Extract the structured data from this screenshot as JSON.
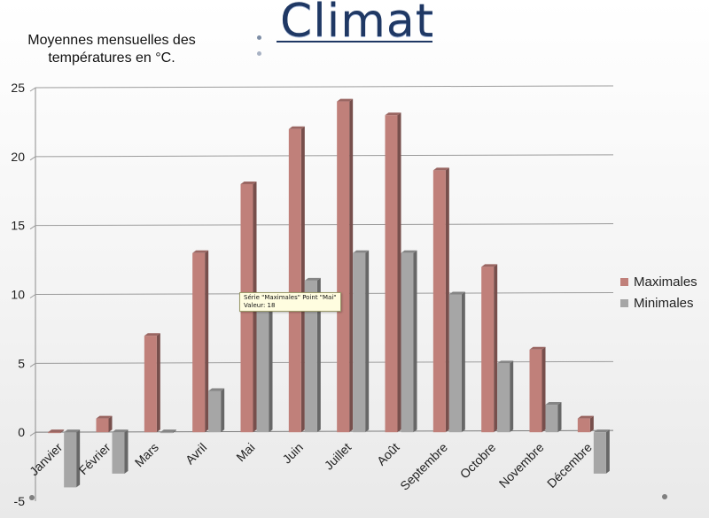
{
  "slide": {
    "title": "Climat"
  },
  "tooltip": {
    "line1": "Série \"Maximales\" Point \"Mai\"",
    "line2": "Valeur: 18"
  },
  "chart_data": {
    "type": "bar",
    "subtitle": "Moyennes mensuelles des températures en °C.",
    "categories": [
      "Janvier",
      "Février",
      "Mars",
      "Avril",
      "Mai",
      "Juin",
      "Juillet",
      "Août",
      "Septembre",
      "Octobre",
      "Novembre",
      "Décembre"
    ],
    "series": [
      {
        "name": "Maximales",
        "color": "#c0807a",
        "values": [
          0,
          1,
          7,
          13,
          18,
          22,
          24,
          23,
          19,
          12,
          6,
          1
        ]
      },
      {
        "name": "Minimales",
        "color": "#a6a6a6",
        "values": [
          -4,
          -3,
          0,
          3,
          9,
          11,
          13,
          13,
          10,
          5,
          2,
          -3
        ]
      }
    ],
    "ylim": [
      -5,
      25
    ],
    "yticks": [
      -5,
      0,
      5,
      10,
      15,
      20,
      25
    ],
    "grid": true,
    "legend_position": "right"
  }
}
